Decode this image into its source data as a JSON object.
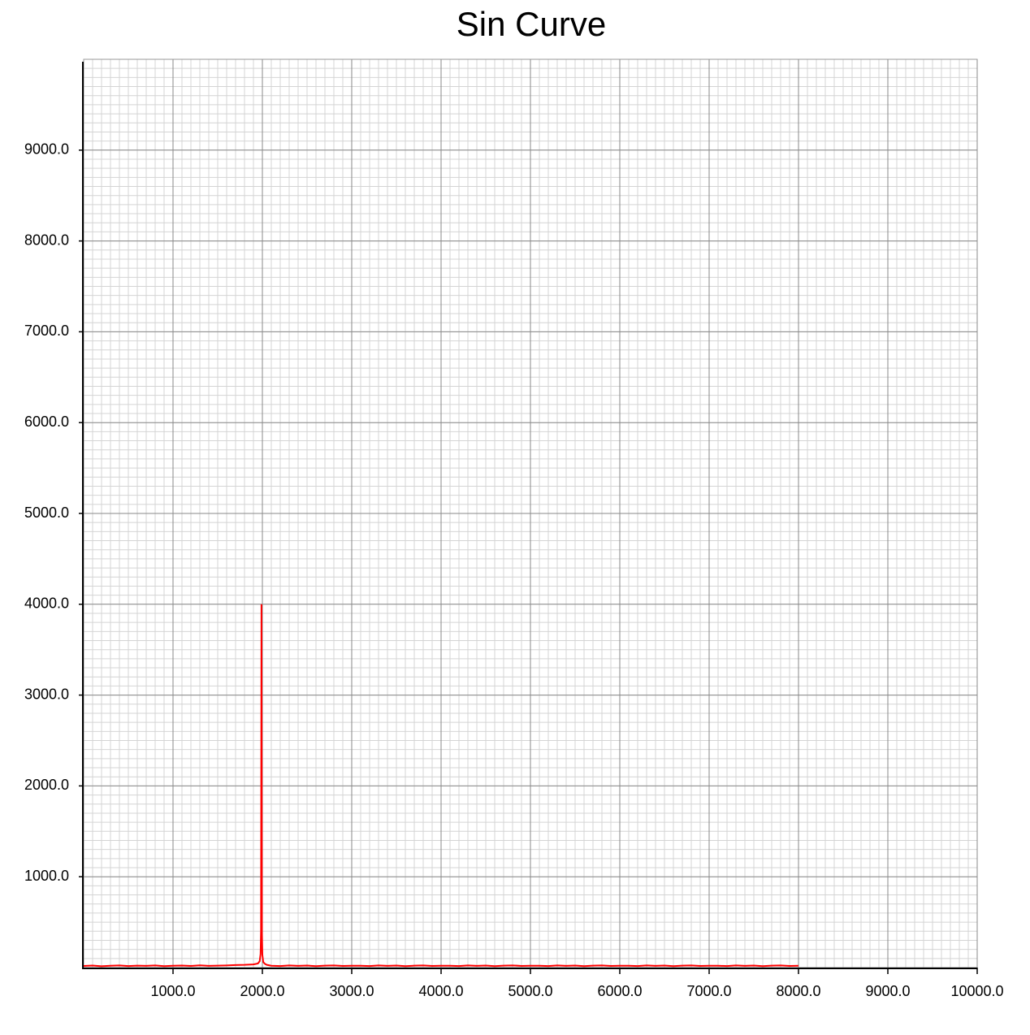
{
  "chart_data": {
    "type": "line",
    "title": "Sin Curve",
    "x": [
      0,
      100,
      200,
      300,
      400,
      500,
      600,
      700,
      800,
      900,
      1000,
      1100,
      1200,
      1300,
      1400,
      1500,
      1600,
      1700,
      1800,
      1900,
      1950,
      1970,
      1980,
      1985,
      1990,
      1995,
      2000,
      2010,
      2030,
      2050,
      2100,
      2200,
      2300,
      2400,
      2500,
      2600,
      2700,
      2800,
      2900,
      3000,
      3100,
      3200,
      3300,
      3400,
      3500,
      3600,
      3700,
      3800,
      3900,
      4000,
      4100,
      4200,
      4300,
      4400,
      4500,
      4600,
      4700,
      4800,
      4900,
      5000,
      5100,
      5200,
      5300,
      5400,
      5500,
      5600,
      5700,
      5800,
      5900,
      6000,
      6100,
      6200,
      6300,
      6400,
      6500,
      6600,
      6700,
      6800,
      6900,
      7000,
      7100,
      7200,
      7300,
      7400,
      7500,
      7600,
      7700,
      7800,
      7900,
      8000
    ],
    "series": [
      {
        "name": "Sin Curve",
        "color": "#ff0000",
        "values": [
          18,
          22,
          15,
          20,
          24,
          17,
          21,
          19,
          23,
          16,
          20,
          22,
          18,
          25,
          19,
          21,
          24,
          28,
          30,
          35,
          45,
          70,
          150,
          400,
          4000,
          380,
          140,
          60,
          40,
          30,
          20,
          17,
          23,
          19,
          22,
          16,
          21,
          24,
          18,
          20,
          20,
          17,
          23,
          19,
          22,
          16,
          21,
          24,
          18,
          20,
          20,
          17,
          23,
          19,
          22,
          16,
          21,
          24,
          18,
          20,
          20,
          17,
          23,
          19,
          22,
          16,
          21,
          24,
          18,
          20,
          20,
          17,
          23,
          19,
          22,
          16,
          21,
          24,
          18,
          20,
          20,
          17,
          23,
          19,
          22,
          16,
          21,
          24,
          18,
          20
        ]
      }
    ],
    "xlim": [
      0,
      10000
    ],
    "ylim": [
      0,
      10000
    ],
    "xticks": [
      {
        "value": 1000,
        "label": "1000.0"
      },
      {
        "value": 2000,
        "label": "2000.0"
      },
      {
        "value": 3000,
        "label": "3000.0"
      },
      {
        "value": 4000,
        "label": "4000.0"
      },
      {
        "value": 5000,
        "label": "5000.0"
      },
      {
        "value": 6000,
        "label": "6000.0"
      },
      {
        "value": 7000,
        "label": "7000.0"
      },
      {
        "value": 8000,
        "label": "8000.0"
      },
      {
        "value": 9000,
        "label": "9000.0"
      },
      {
        "value": 10000,
        "label": "10000.0"
      }
    ],
    "yticks": [
      {
        "value": 1000,
        "label": "1000.0"
      },
      {
        "value": 2000,
        "label": "2000.0"
      },
      {
        "value": 3000,
        "label": "3000.0"
      },
      {
        "value": 4000,
        "label": "4000.0"
      },
      {
        "value": 5000,
        "label": "5000.0"
      },
      {
        "value": 6000,
        "label": "6000.0"
      },
      {
        "value": 7000,
        "label": "7000.0"
      },
      {
        "value": 8000,
        "label": "8000.0"
      },
      {
        "value": 9000,
        "label": "9000.0"
      }
    ],
    "grid": true
  }
}
